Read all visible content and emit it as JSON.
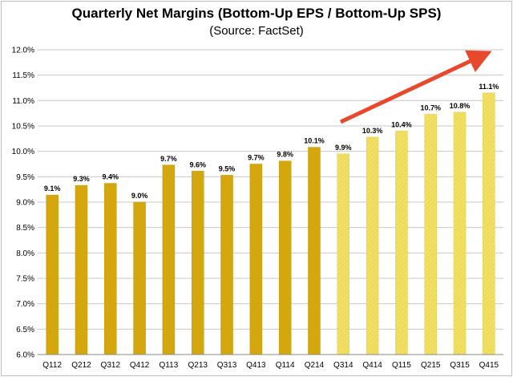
{
  "chart_data": {
    "type": "bar",
    "title": "Quarterly Net Margins (Bottom-Up EPS / Bottom-Up SPS)",
    "subtitle": "(Source: FactSet)",
    "categories": [
      "Q112",
      "Q212",
      "Q312",
      "Q412",
      "Q113",
      "Q213",
      "Q313",
      "Q413",
      "Q114",
      "Q214",
      "Q314",
      "Q414",
      "Q115",
      "Q215",
      "Q315",
      "Q415"
    ],
    "values": [
      9.14,
      9.33,
      9.37,
      9.0,
      9.73,
      9.61,
      9.53,
      9.75,
      9.81,
      10.08,
      9.95,
      10.28,
      10.4,
      10.73,
      10.77,
      11.15
    ],
    "data_labels": [
      "9.1%",
      "9.3%",
      "9.4%",
      "9.0%",
      "9.7%",
      "9.6%",
      "9.5%",
      "9.7%",
      "9.8%",
      "10.1%",
      "9.9%",
      "10.3%",
      "10.4%",
      "10.7%",
      "10.8%",
      "11.1%"
    ],
    "series_kind": [
      "actual",
      "actual",
      "actual",
      "actual",
      "actual",
      "actual",
      "actual",
      "actual",
      "actual",
      "actual",
      "estimate",
      "estimate",
      "estimate",
      "estimate",
      "estimate",
      "estimate"
    ],
    "ylim": [
      6.0,
      12.0
    ],
    "yticks": [
      6.0,
      6.5,
      7.0,
      7.5,
      8.0,
      8.5,
      9.0,
      9.5,
      10.0,
      10.5,
      11.0,
      11.5,
      12.0
    ],
    "ytick_labels": [
      "6.0%",
      "6.5%",
      "7.0%",
      "7.5%",
      "8.0%",
      "8.5%",
      "9.0%",
      "9.5%",
      "10.0%",
      "10.5%",
      "11.0%",
      "11.5%",
      "12.0%"
    ],
    "grid": "horizontal",
    "colors": {
      "actual": "#d4a70f",
      "estimate": "#f1e064",
      "arrow": "#e8482c",
      "grid": "#c8c8c8"
    },
    "annotation": "rising-trend-arrow"
  }
}
